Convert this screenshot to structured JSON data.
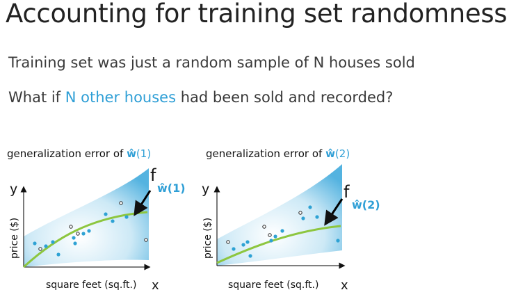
{
  "slide": {
    "title": "Accounting for training set randomness",
    "line1": "Training set was just a random sample of N houses sold",
    "line2_prefix": "What if ",
    "line2_highlight": "N other houses",
    "line2_suffix": " had been sold and recorded?"
  },
  "colors": {
    "highlight": "#2f9fd6",
    "fit_curve": "#8dc63f",
    "point_blue": "#2ea2d4",
    "point_black": "#222222",
    "band": "#9dd3ec"
  },
  "panels": [
    {
      "caption_prefix": "generalization error of ",
      "caption_w": "ŵ",
      "caption_idx": "(1)",
      "ylabel_short": "y",
      "ylabel": "price ($)",
      "xlabel": "square feet (sq.ft.)",
      "xvar": "x",
      "f_letter": "f",
      "f_sub": "ŵ(1)"
    },
    {
      "caption_prefix": "generalization error of ",
      "caption_w": "ŵ",
      "caption_idx": "(2)",
      "ylabel_short": "y",
      "ylabel": "price ($)",
      "xlabel": "square feet (sq.ft.)",
      "xvar": "x",
      "f_letter": "f",
      "f_sub": "ŵ(2)"
    }
  ]
}
